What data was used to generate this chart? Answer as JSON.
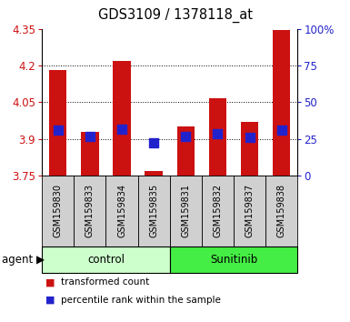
{
  "title": "GDS3109 / 1378118_at",
  "samples": [
    "GSM159830",
    "GSM159833",
    "GSM159834",
    "GSM159835",
    "GSM159831",
    "GSM159832",
    "GSM159837",
    "GSM159838"
  ],
  "bar_values": [
    4.18,
    3.93,
    4.22,
    3.77,
    3.95,
    4.065,
    3.97,
    4.345
  ],
  "percentile_values": [
    3.935,
    3.91,
    3.94,
    3.885,
    3.91,
    3.92,
    3.905,
    3.935
  ],
  "ylim": [
    3.75,
    4.35
  ],
  "yticks": [
    3.75,
    3.9,
    4.05,
    4.2,
    4.35
  ],
  "ytick_labels": [
    "3.75",
    "3.9",
    "4.05",
    "4.2",
    "4.35"
  ],
  "right_yticks": [
    0,
    25,
    50,
    75,
    100
  ],
  "right_ytick_labels": [
    "0",
    "25",
    "50",
    "75",
    "100%"
  ],
  "bar_color": "#cc1111",
  "dot_color": "#2222cc",
  "bar_width": 0.55,
  "dot_size": 55,
  "label_color_left": "#cc1111",
  "label_color_right": "#2222cc",
  "control_color": "#ccffcc",
  "sunitinib_color": "#44ee44",
  "sample_bg_color": "#d0d0d0",
  "legend_bar_label": "transformed count",
  "legend_dot_label": "percentile rank within the sample"
}
